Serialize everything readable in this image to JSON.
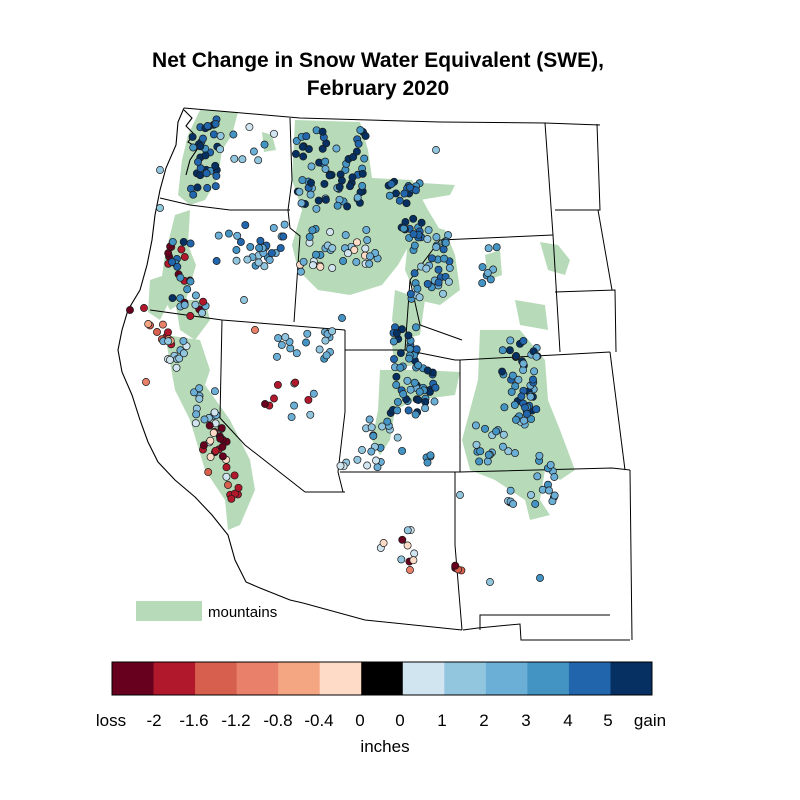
{
  "title": {
    "line1": "Net Change in Snow Water Equivalent (SWE),",
    "line2": "February 2020"
  },
  "legend": {
    "mountains_label": "mountains",
    "mountains_color": "#b7dbb9"
  },
  "colorbar": {
    "unit_label": "inches",
    "tick_labels": [
      "loss",
      "-2",
      "-1.6",
      "-1.2",
      "-0.8",
      "-0.4",
      "0",
      "0",
      "1",
      "2",
      "3",
      "4",
      "5",
      "gain"
    ],
    "swatches": [
      "#67001f",
      "#b2182b",
      "#d6604d",
      "#e8806a",
      "#f4a582",
      "#fddbc7",
      "#000000",
      "#d1e5f0",
      "#92c5de",
      "#6baed6",
      "#4393c3",
      "#2166ac",
      "#053061"
    ]
  },
  "map_data": {
    "type": "point-map",
    "region": "Western United States",
    "sites_summary": "Mostly blue (SWE gain) across the interior West and Northern Rockies; red (SWE loss) concentrated along the Sierra Nevada and southern Cascades."
  }
}
